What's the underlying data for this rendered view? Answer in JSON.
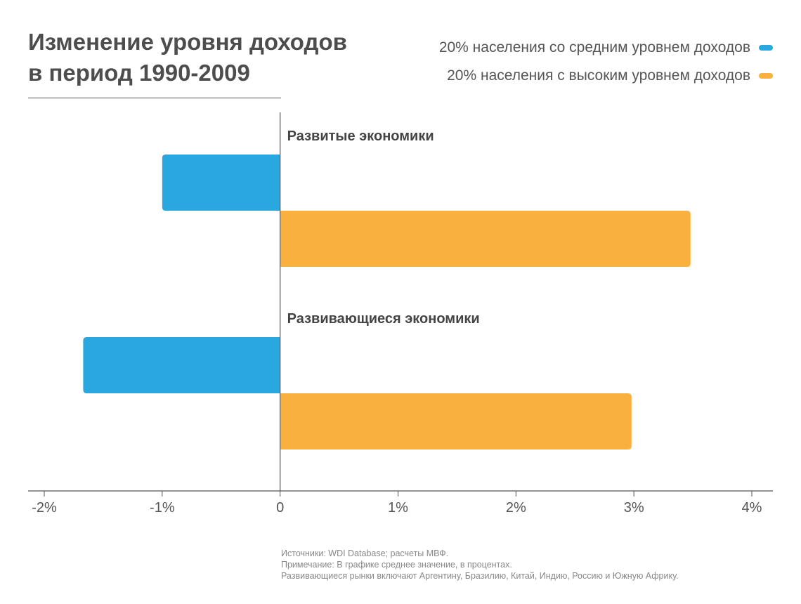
{
  "title_lines": [
    "Изменение уровня доходов",
    "в период 1990-2009"
  ],
  "legend": [
    {
      "label": "20% населения со средним уровнем доходов",
      "color": "#29a8e0"
    },
    {
      "label": "20% населения с высоким уровнем доходов",
      "color": "#f9b03f"
    }
  ],
  "footnotes": [
    "Источники: WDI Database; расчеты МВФ.",
    "Примечание: В графике среднее значение, в процентах.",
    "Развивающиеся рынки включают Аргентину, Бразилию, Китай, Индию, Россию и Южную Африку."
  ],
  "chart_data": {
    "type": "bar",
    "orientation": "horizontal",
    "title": "Изменение уровня доходов в период 1990-2009",
    "xlim": [
      -2,
      4
    ],
    "xticks": [
      -2,
      -1,
      0,
      1,
      2,
      3,
      4
    ],
    "xtick_labels": [
      "-2%",
      "-1%",
      "0",
      "1%",
      "2%",
      "3%",
      "4%"
    ],
    "unit": "%",
    "grid": false,
    "legend_position": "top-right",
    "categories": [
      "Развитые экономики",
      "Развивающиеся экономики"
    ],
    "series": [
      {
        "name": "20% населения со средним уровнем доходов",
        "color": "#29a8e0",
        "values": [
          -1.0,
          -1.67
        ]
      },
      {
        "name": "20% населения с высоким уровнем доходов",
        "color": "#f9b03f",
        "values": [
          3.48,
          2.98
        ]
      }
    ]
  }
}
